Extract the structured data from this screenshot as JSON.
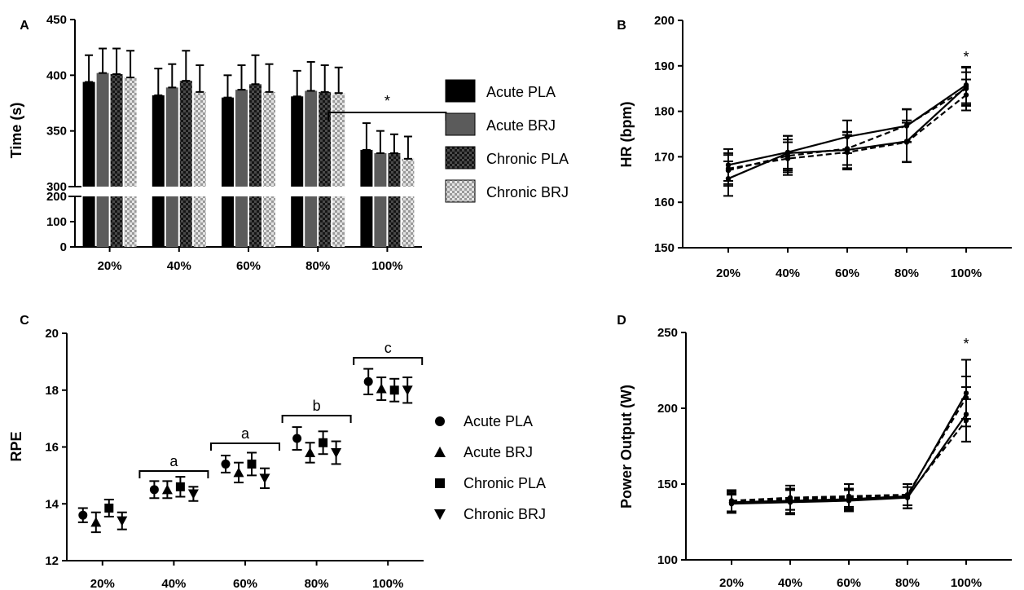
{
  "chart_data": [
    {
      "panel": "A",
      "type": "bar",
      "ylabel": "Time (s)",
      "categories": [
        "20%",
        "40%",
        "60%",
        "80%",
        "100%"
      ],
      "ylim": [
        0,
        450
      ],
      "axis_break": [
        200,
        300
      ],
      "yticks": [
        0,
        100,
        200,
        300,
        350,
        400,
        450
      ],
      "grid": false,
      "legend_position": "right",
      "series": [
        {
          "name": "Acute PLA",
          "values": [
            394,
            382,
            380,
            381,
            333
          ],
          "errors": [
            24,
            24,
            20,
            23,
            24
          ],
          "color": "#000000"
        },
        {
          "name": "Acute BRJ",
          "values": [
            402,
            389,
            387,
            386,
            330
          ],
          "errors": [
            22,
            21,
            22,
            26,
            20
          ],
          "color": "#5b5b5b"
        },
        {
          "name": "Chronic PLA",
          "values": [
            401,
            395,
            392,
            385,
            330
          ],
          "errors": [
            23,
            27,
            26,
            24,
            17
          ],
          "color": "#2b2b2b"
        },
        {
          "name": "Chronic BRJ",
          "values": [
            398,
            385,
            385,
            384,
            325
          ],
          "errors": [
            24,
            24,
            25,
            23,
            20
          ],
          "color": "#bdbdbd"
        }
      ],
      "annotations": [
        {
          "text": "*",
          "over": "100%"
        }
      ]
    },
    {
      "panel": "B",
      "type": "line",
      "ylabel": "HR (bpm)",
      "categories": [
        "20%",
        "40%",
        "60%",
        "80%",
        "100%"
      ],
      "ylim": [
        150,
        200
      ],
      "yticks": [
        150,
        160,
        170,
        180,
        190,
        200
      ],
      "grid": false,
      "series": [
        {
          "values": [
            168.2,
            171.0,
            174.4,
            176.8,
            185.8
          ],
          "errors": [
            3.5,
            3.6,
            3.6,
            3.6,
            4.0
          ],
          "style": "solid"
        },
        {
          "values": [
            165.2,
            170.8,
            171.5,
            173.4,
            185.4
          ],
          "errors": [
            3.8,
            3.8,
            4.0,
            4.6,
            4.2
          ],
          "style": "solid"
        },
        {
          "values": [
            167.0,
            170.2,
            171.8,
            176.9,
            185.0
          ],
          "errors": [
            3.4,
            3.6,
            3.6,
            3.6,
            3.6
          ],
          "style": "dashed"
        },
        {
          "values": [
            167.4,
            169.6,
            171.0,
            173.2,
            183.6
          ],
          "errors": [
            3.4,
            3.6,
            3.8,
            4.3,
            3.4
          ],
          "style": "dashed"
        }
      ],
      "annotations": [
        {
          "text": "*",
          "over": "100%"
        }
      ]
    },
    {
      "panel": "C",
      "type": "scatter",
      "ylabel": "RPE",
      "categories": [
        "20%",
        "40%",
        "60%",
        "80%",
        "100%"
      ],
      "ylim": [
        12,
        20
      ],
      "yticks": [
        12,
        14,
        16,
        18,
        20
      ],
      "grid": false,
      "legend_position": "right",
      "series": [
        {
          "name": "Acute PLA",
          "marker": "circle",
          "values": [
            13.6,
            14.5,
            15.4,
            16.3,
            18.3
          ],
          "errors": [
            0.25,
            0.3,
            0.3,
            0.4,
            0.45
          ]
        },
        {
          "name": "Acute BRJ",
          "marker": "triangle",
          "values": [
            13.35,
            14.5,
            15.1,
            15.8,
            18.05
          ],
          "errors": [
            0.35,
            0.3,
            0.35,
            0.35,
            0.4
          ]
        },
        {
          "name": "Chronic PLA",
          "marker": "square",
          "values": [
            13.85,
            14.6,
            15.4,
            16.15,
            18.0
          ],
          "errors": [
            0.3,
            0.35,
            0.4,
            0.4,
            0.4
          ]
        },
        {
          "name": "Chronic BRJ",
          "marker": "triangle-down",
          "values": [
            13.4,
            14.35,
            14.9,
            15.8,
            18.0
          ],
          "errors": [
            0.3,
            0.25,
            0.35,
            0.4,
            0.45
          ]
        }
      ],
      "annotations": [
        {
          "text": "a",
          "over": "40%"
        },
        {
          "text": "a",
          "over": "60%"
        },
        {
          "text": "b",
          "over": "80%"
        },
        {
          "text": "c",
          "over": "100%"
        }
      ]
    },
    {
      "panel": "D",
      "type": "line",
      "ylabel": "Power Output (W)",
      "categories": [
        "20%",
        "40%",
        "60%",
        "80%",
        "100%"
      ],
      "ylim": [
        100,
        250
      ],
      "yticks": [
        100,
        150,
        200,
        250
      ],
      "grid": false,
      "series": [
        {
          "values": [
            138,
            139,
            140,
            142,
            210
          ],
          "errors": [
            7,
            8,
            7,
            8,
            22
          ],
          "style": "solid"
        },
        {
          "values": [
            137,
            138,
            139,
            141,
            196
          ],
          "errors": [
            6,
            8,
            7,
            7,
            18
          ],
          "style": "solid"
        },
        {
          "values": [
            139,
            141,
            142,
            143,
            207
          ],
          "errors": [
            7,
            8,
            8,
            7,
            14
          ],
          "style": "dashed"
        },
        {
          "values": [
            138,
            140,
            141,
            142,
            192
          ],
          "errors": [
            6,
            7,
            6,
            8,
            14
          ],
          "style": "dashed"
        }
      ],
      "annotations": [
        {
          "text": "*",
          "over": "100%"
        }
      ]
    }
  ]
}
